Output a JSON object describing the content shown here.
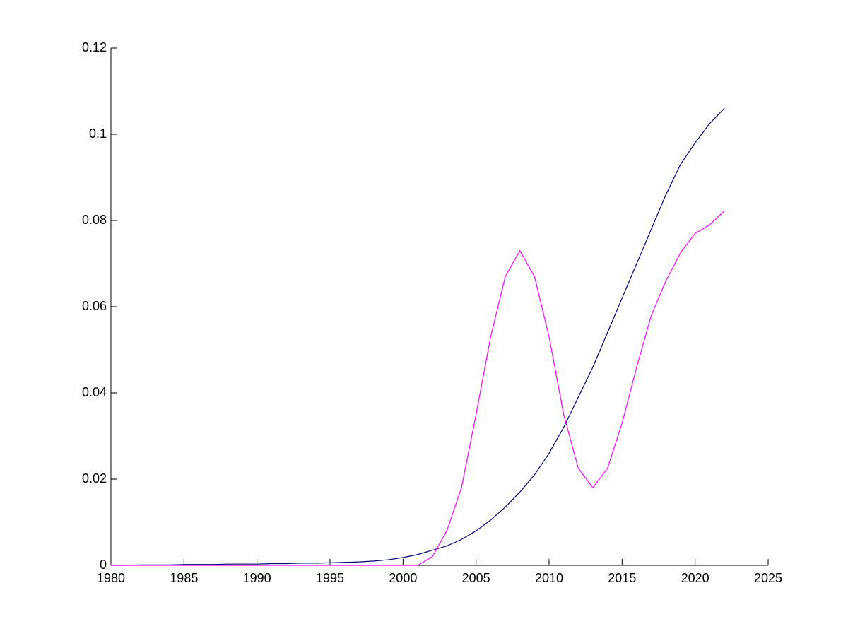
{
  "chart_data": {
    "type": "line",
    "x": [
      1980,
      1981,
      1982,
      1983,
      1984,
      1985,
      1986,
      1987,
      1988,
      1989,
      1990,
      1991,
      1992,
      1993,
      1994,
      1995,
      1996,
      1997,
      1998,
      1999,
      2000,
      2001,
      2002,
      2003,
      2004,
      2005,
      2006,
      2007,
      2008,
      2009,
      2010,
      2011,
      2012,
      2013,
      2014,
      2015,
      2016,
      2017,
      2018,
      2019,
      2020,
      2021,
      2022
    ],
    "series": [
      {
        "color": "#00007f",
        "values": [
          0,
          0,
          0.0001,
          0.0001,
          0.0001,
          0.0002,
          0.0002,
          0.0002,
          0.0003,
          0.0003,
          0.0003,
          0.0004,
          0.0004,
          0.0005,
          0.0005,
          0.0006,
          0.0007,
          0.0008,
          0.001,
          0.0013,
          0.0018,
          0.0025,
          0.0035,
          0.0045,
          0.006,
          0.008,
          0.0105,
          0.0135,
          0.017,
          0.021,
          0.026,
          0.032,
          0.039,
          0.046,
          0.054,
          0.062,
          0.07,
          0.078,
          0.086,
          0.093,
          0.098,
          0.1025,
          0.106
        ]
      },
      {
        "color": "#ff00ff",
        "values": [
          0,
          0,
          0,
          0,
          0,
          0,
          0,
          0,
          0,
          0,
          0,
          0,
          0,
          0,
          0,
          0,
          0,
          0,
          0,
          0,
          0,
          0,
          0.002,
          0.008,
          0.018,
          0.035,
          0.053,
          0.067,
          0.073,
          0.067,
          0.053,
          0.035,
          0.0225,
          0.018,
          0.0225,
          0.033,
          0.046,
          0.058,
          0.066,
          0.0725,
          0.077,
          0.079,
          0.0822
        ]
      }
    ],
    "xlim": [
      1980,
      2025
    ],
    "xticks": [
      1980,
      1985,
      1990,
      1995,
      2000,
      2005,
      2010,
      2015,
      2020,
      2025
    ],
    "ylim": [
      0,
      0.12
    ],
    "yticks": [
      0,
      0.02,
      0.04,
      0.06,
      0.08,
      0.1,
      0.12
    ],
    "grid": false
  }
}
